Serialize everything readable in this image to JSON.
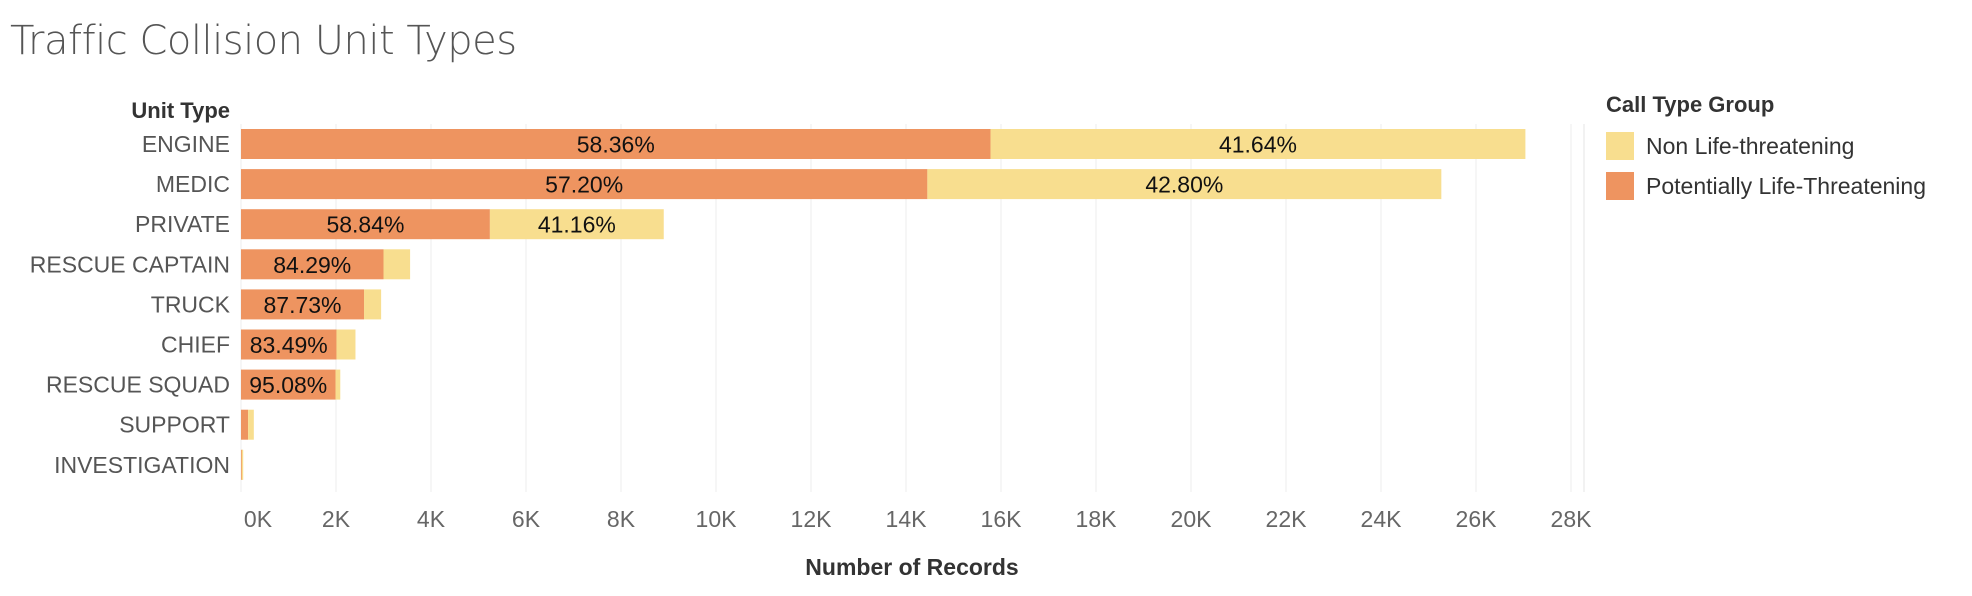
{
  "title": "Traffic Collision Unit Types",
  "chart_data": {
    "type": "bar",
    "orientation": "horizontal",
    "stacked": true,
    "title": "Traffic Collision Unit Types",
    "row_header": "Unit Type",
    "xlabel": "Number of Records",
    "xlim": [
      0,
      28500
    ],
    "x_ticks": [
      0,
      2000,
      4000,
      6000,
      8000,
      10000,
      12000,
      14000,
      16000,
      18000,
      20000,
      22000,
      24000,
      26000,
      28000
    ],
    "x_tick_labels": [
      "0K",
      "2K",
      "4K",
      "6K",
      "8K",
      "10K",
      "12K",
      "14K",
      "16K",
      "18K",
      "20K",
      "22K",
      "24K",
      "26K",
      "28K"
    ],
    "grid": "vertical",
    "categories": [
      "ENGINE",
      "MEDIC",
      "PRIVATE",
      "RESCUE CAPTAIN",
      "TRUCK",
      "CHIEF",
      "RESCUE SQUAD",
      "SUPPORT",
      "INVESTIGATION"
    ],
    "series": [
      {
        "name": "Potentially Life-Threatening",
        "color": "#ee9460",
        "values": [
          15780,
          14450,
          5240,
          3000,
          2590,
          2010,
          1990,
          150,
          15
        ],
        "labels": [
          "58.36%",
          "57.20%",
          "58.84%",
          "84.29%",
          "87.73%",
          "83.49%",
          "95.08%",
          "",
          ""
        ]
      },
      {
        "name": "Non Life-threatening",
        "color": "#f8de8f",
        "values": [
          11260,
          10820,
          3660,
          560,
          360,
          400,
          100,
          120,
          20
        ],
        "labels": [
          "41.64%",
          "42.80%",
          "41.16%",
          "",
          "",
          "",
          "",
          "",
          ""
        ]
      }
    ],
    "legend": {
      "title": "Call Type Group",
      "position": "top-right",
      "items": [
        "Non Life-threatening",
        "Potentially Life-Threatening"
      ]
    }
  }
}
